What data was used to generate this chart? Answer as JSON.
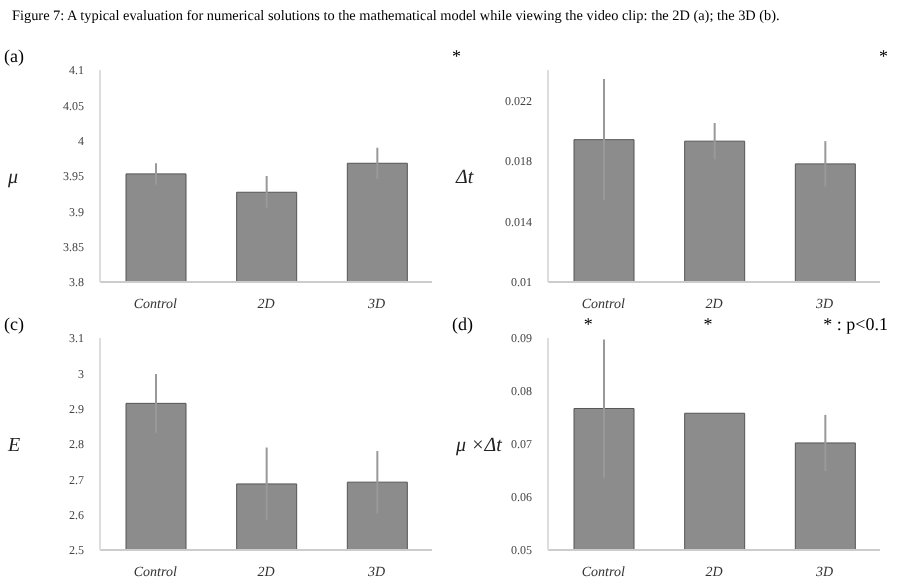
{
  "chart_data": [
    {
      "type": "bar",
      "title": "Figure 7: A typical evaluation for numerical solutions to the mathematical model while viewing the video clip: the 2D (a); the 3D (b).",
      "ylabel": "μ",
      "categories": [
        "Control",
        "2D",
        "3D"
      ],
      "values": [
        3.953,
        3.927,
        3.968
      ],
      "errors": [
        0.015,
        0.023,
        0.022
      ],
      "color": "#8c8c8c",
      "ylim": [
        3.8,
        4.1
      ],
      "yticks": [
        3.8,
        3.85,
        3.9,
        3.95,
        4,
        4.05,
        4.1
      ],
      "annotations": [
        "(a)"
      ]
    },
    {
      "type": "bar",
      "ylabel": "Δt",
      "categories": [
        "Control",
        "2D",
        "3D"
      ],
      "values": [
        0.0194,
        0.0193,
        0.0178
      ],
      "errors": [
        0.004,
        0.0012,
        0.0015
      ],
      "color": "#8c8c8c",
      "ylim": [
        0.01,
        0.024
      ],
      "yticks": [
        0.01,
        0.014,
        0.018,
        0.022
      ],
      "annotations": [
        "*",
        "*"
      ]
    },
    {
      "type": "bar",
      "ylabel": "E",
      "categories": [
        "Control",
        "2D",
        "3D"
      ],
      "values": [
        2.915,
        2.687,
        2.692
      ],
      "errors": [
        0.083,
        0.103,
        0.088
      ],
      "color": "#8c8c8c",
      "ylim": [
        2.5,
        3.1
      ],
      "yticks": [
        2.5,
        2.6,
        2.7,
        2.8,
        2.9,
        3,
        3.1
      ],
      "annotations": [
        "(c)"
      ]
    },
    {
      "type": "bar",
      "ylabel": "μ ×Δt",
      "categories": [
        "Control",
        "2D",
        "3D"
      ],
      "values": [
        0.0767,
        0.0758,
        0.0702
      ],
      "errors": [
        0.013,
        null,
        0.0053
      ],
      "color": "#8c8c8c",
      "ylim": [
        0.05,
        0.09
      ],
      "yticks": [
        0.05,
        0.06,
        0.07,
        0.08,
        0.09
      ],
      "annotations": [
        "(d)",
        "*",
        "*",
        "* : p<0.1"
      ]
    }
  ]
}
